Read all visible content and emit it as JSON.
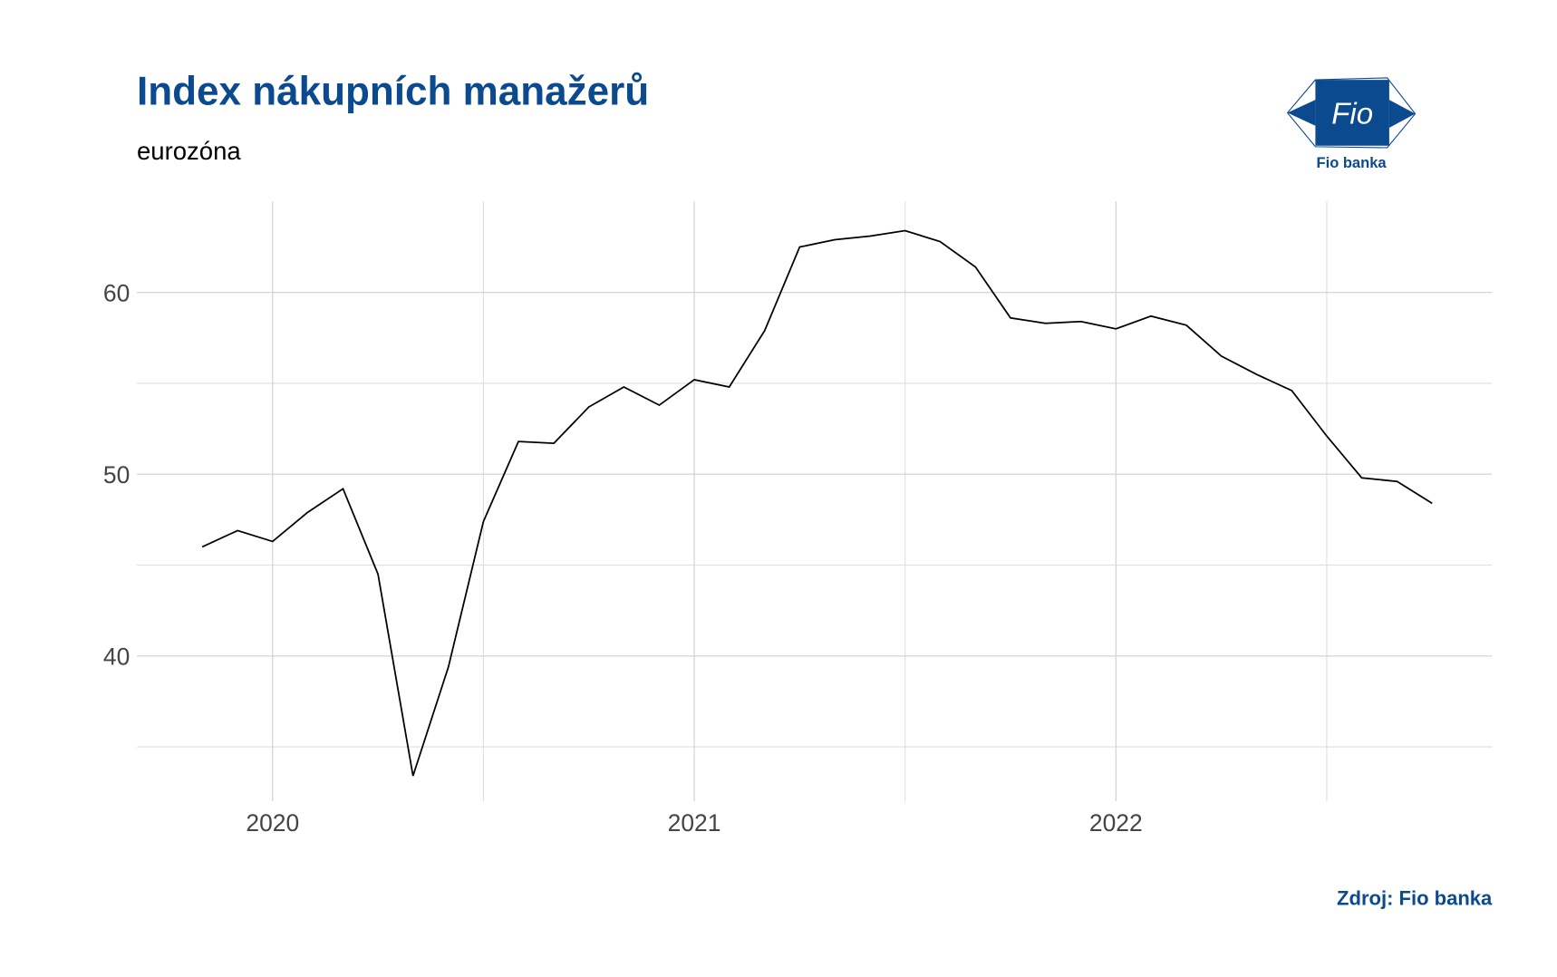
{
  "chart_data": {
    "type": "line",
    "title": "Index nákupních manažerů",
    "subtitle": "eurozóna",
    "caption": "Zdroj: Fio banka",
    "logo": {
      "mark": "Fio",
      "name": "Fio banka"
    },
    "x": [
      2019.833,
      2019.917,
      2020,
      2020.083,
      2020.167,
      2020.25,
      2020.333,
      2020.417,
      2020.5,
      2020.583,
      2020.667,
      2020.75,
      2020.833,
      2020.917,
      2021,
      2021.083,
      2021.167,
      2021.25,
      2021.333,
      2021.417,
      2021.5,
      2021.583,
      2021.667,
      2021.75,
      2021.833,
      2021.917,
      2022,
      2022.083,
      2022.167,
      2022.25,
      2022.333,
      2022.417,
      2022.5,
      2022.583,
      2022.667,
      2022.75
    ],
    "series": [
      {
        "color": "#000000",
        "values": [
          46.0,
          46.9,
          46.3,
          47.9,
          49.2,
          44.5,
          33.4,
          39.4,
          47.4,
          51.8,
          51.7,
          53.7,
          54.8,
          53.8,
          55.2,
          54.8,
          57.9,
          62.5,
          62.9,
          63.1,
          63.4,
          62.8,
          61.4,
          58.6,
          58.3,
          58.4,
          58.0,
          58.7,
          58.2,
          56.5,
          55.5,
          54.6,
          52.1,
          49.8,
          49.6,
          48.4
        ]
      }
    ],
    "xlim": [
      2019.678,
      2022.892
    ],
    "xticks": [
      2020,
      2021,
      2022
    ],
    "x_minor_ticks": [
      2020.5,
      2021.5,
      2022.5
    ],
    "ylim": [
      32,
      65
    ],
    "yticks": [
      40,
      50,
      60
    ],
    "y_minor_ticks": [
      35,
      45,
      55
    ],
    "grid": true
  }
}
